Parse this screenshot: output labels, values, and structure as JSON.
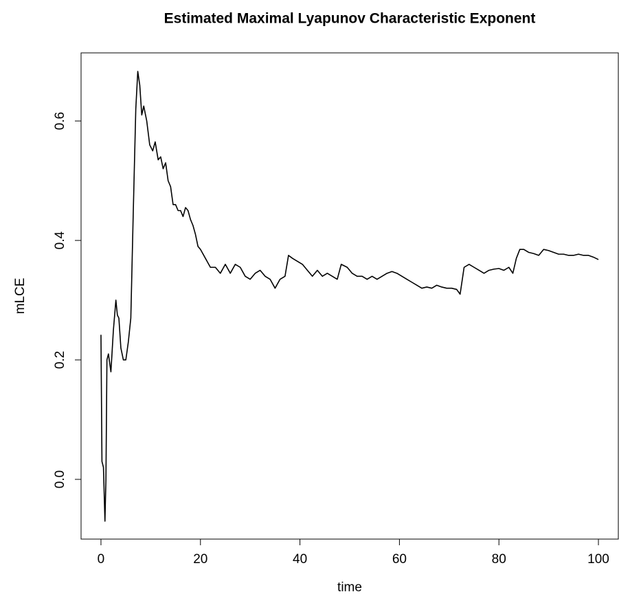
{
  "chart_data": {
    "type": "line",
    "title": "Estimated Maximal Lyapunov Characteristic Exponent",
    "xlabel": "time",
    "ylabel": "mLCE",
    "color": "#000000",
    "x": [
      0,
      0.2,
      0.5,
      0.8,
      1.0,
      1.2,
      1.5,
      2.0,
      2.5,
      3.0,
      3.3,
      3.6,
      4.0,
      4.5,
      5.0,
      5.5,
      6.0,
      6.5,
      7.0,
      7.4,
      7.8,
      8.2,
      8.6,
      9.2,
      9.8,
      10.4,
      10.9,
      11.5,
      12,
      12.5,
      13,
      13.5,
      14,
      14.5,
      15,
      15.5,
      16,
      16.5,
      17,
      17.5,
      18,
      18.5,
      19,
      19.5,
      20,
      21,
      22,
      23,
      24,
      25,
      26,
      27,
      28,
      29,
      30,
      31,
      32,
      33,
      34,
      35,
      36,
      37,
      37.7,
      38.5,
      39.5,
      40.5,
      41.5,
      42.5,
      43.5,
      44.5,
      45.5,
      46.5,
      47.5,
      48.3,
      49.5,
      50.5,
      51.5,
      52.5,
      53.5,
      54.5,
      55.5,
      56.5,
      57.5,
      58.5,
      59.5,
      60.5,
      61.5,
      62.5,
      63.5,
      64.5,
      65.5,
      66.5,
      67.5,
      68.5,
      69.5,
      70.5,
      71.5,
      72.2,
      73,
      74,
      75,
      76,
      77,
      78,
      79,
      80,
      81,
      82,
      82.8,
      83.5,
      84.2,
      85,
      86,
      87,
      88,
      89,
      90,
      91,
      92,
      93,
      94,
      95,
      96,
      97,
      98,
      99,
      100
    ],
    "values": [
      0.242,
      0.03,
      0.02,
      -0.07,
      0.0,
      0.2,
      0.21,
      0.18,
      0.25,
      0.3,
      0.275,
      0.27,
      0.22,
      0.2,
      0.2,
      0.23,
      0.27,
      0.45,
      0.62,
      0.683,
      0.66,
      0.61,
      0.625,
      0.6,
      0.56,
      0.55,
      0.565,
      0.535,
      0.54,
      0.52,
      0.53,
      0.5,
      0.49,
      0.46,
      0.46,
      0.45,
      0.45,
      0.44,
      0.455,
      0.45,
      0.435,
      0.425,
      0.41,
      0.39,
      0.385,
      0.37,
      0.355,
      0.355,
      0.345,
      0.36,
      0.345,
      0.36,
      0.355,
      0.34,
      0.335,
      0.345,
      0.35,
      0.34,
      0.335,
      0.32,
      0.335,
      0.34,
      0.375,
      0.37,
      0.365,
      0.36,
      0.35,
      0.34,
      0.35,
      0.34,
      0.345,
      0.34,
      0.335,
      0.36,
      0.355,
      0.345,
      0.34,
      0.34,
      0.335,
      0.34,
      0.335,
      0.34,
      0.345,
      0.348,
      0.345,
      0.34,
      0.335,
      0.33,
      0.325,
      0.32,
      0.322,
      0.32,
      0.325,
      0.322,
      0.32,
      0.32,
      0.318,
      0.31,
      0.355,
      0.36,
      0.355,
      0.35,
      0.345,
      0.35,
      0.352,
      0.353,
      0.35,
      0.355,
      0.345,
      0.37,
      0.385,
      0.385,
      0.38,
      0.378,
      0.375,
      0.385,
      0.383,
      0.38,
      0.377,
      0.377,
      0.375,
      0.375,
      0.377,
      0.375,
      0.375,
      0.372,
      0.368
    ],
    "xlim": [
      -4,
      104
    ],
    "xticks": [
      0,
      20,
      40,
      60,
      80,
      100
    ],
    "ylim": [
      -0.1,
      0.714
    ],
    "yticks": [
      {
        "value": 0,
        "label": "0.0"
      },
      0.2,
      0.4,
      0.6
    ],
    "grid": false
  }
}
